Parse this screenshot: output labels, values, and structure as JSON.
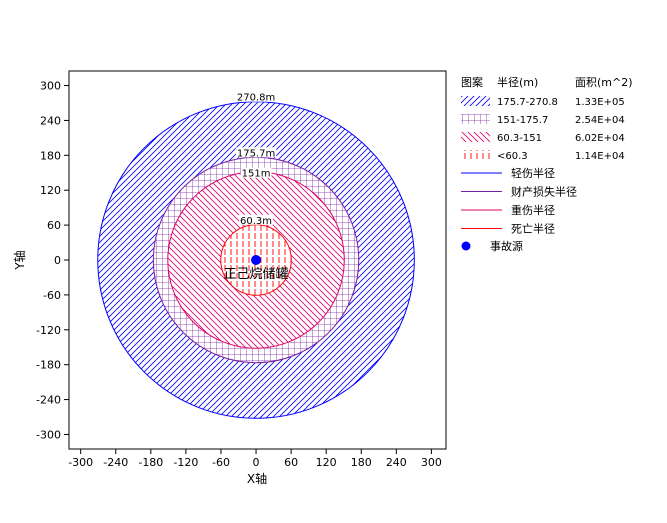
{
  "chart_data": {
    "type": "concentric-zones",
    "xlabel": "X轴",
    "ylabel": "Y轴",
    "xlim": [
      -320,
      325
    ],
    "ylim": [
      -325,
      325
    ],
    "xticks": [
      -300,
      -240,
      -180,
      -120,
      -60,
      0,
      60,
      120,
      180,
      240,
      300
    ],
    "yticks": [
      300,
      240,
      180,
      120,
      60,
      0,
      -60,
      -120,
      -180,
      -240,
      -300
    ],
    "source": {
      "x": 0,
      "y": 0,
      "label": "正己烷储罐"
    },
    "zones": [
      {
        "key": "light",
        "radius": 270.8,
        "radius_label": "270.8m",
        "range": "175.7-270.8",
        "area": "1.33E+05",
        "color": "#0000ff",
        "hatch": "diag-right"
      },
      {
        "key": "property",
        "radius": 175.7,
        "radius_label": "175.7m",
        "range": "151-175.7",
        "area": "2.54E+04",
        "color": "#7a1fa2",
        "hatch": "grid"
      },
      {
        "key": "serious",
        "radius": 151,
        "radius_label": "151m",
        "range": "60.3-151",
        "area": "6.02E+04",
        "color": "#e0006a",
        "hatch": "diag-left"
      },
      {
        "key": "death",
        "radius": 60.3,
        "radius_label": "60.3m",
        "range": "<60.3",
        "area": "1.14E+04",
        "color": "#ff0000",
        "hatch": "vertical"
      }
    ],
    "legend": {
      "placement": "right",
      "headers": {
        "pattern": "图案",
        "radius": "半径(m)",
        "area": "面积(m^2)"
      },
      "lines": [
        {
          "label": "轻伤半径",
          "color": "#0000ff"
        },
        {
          "label": "财产损失半径",
          "color": "#7a1fa2"
        },
        {
          "label": "重伤半径",
          "color": "#e0006a"
        },
        {
          "label": "死亡半径",
          "color": "#ff0000"
        }
      ],
      "source_label": "事故源",
      "source_color": "#0000ff"
    }
  }
}
